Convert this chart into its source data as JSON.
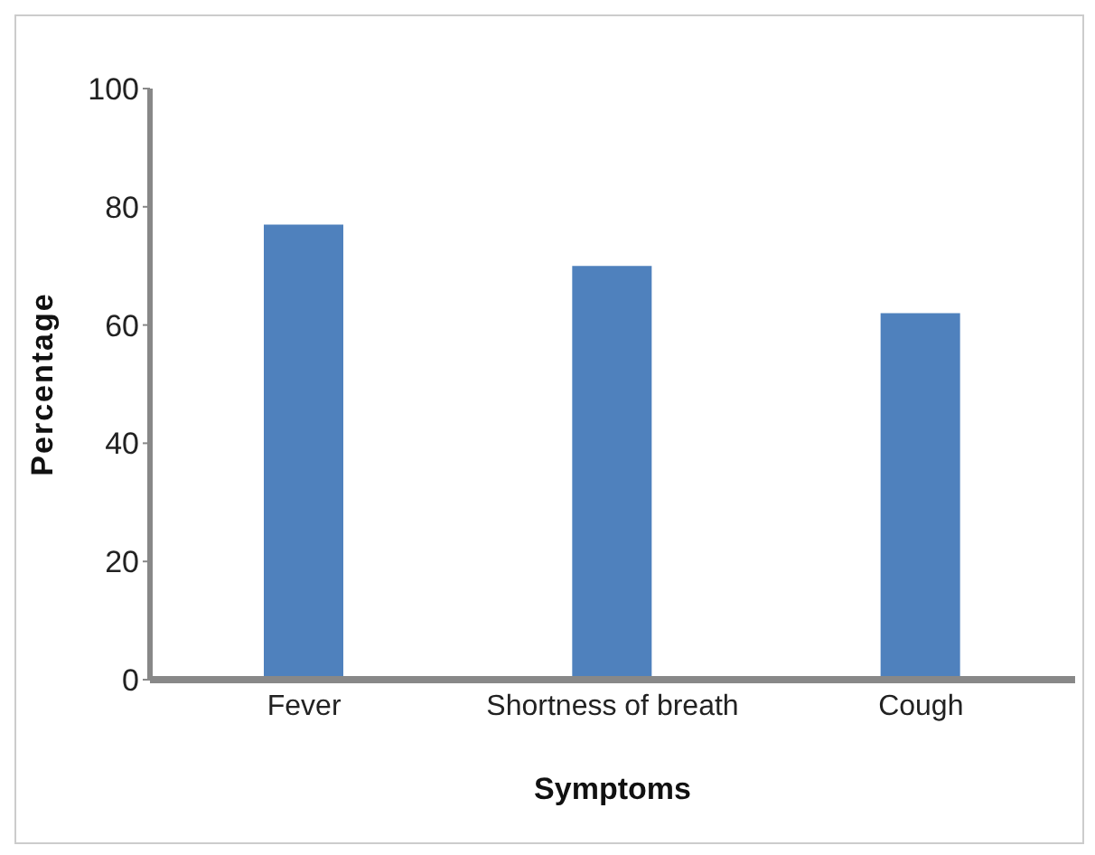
{
  "chart_data": {
    "type": "bar",
    "xlabel": "Symptoms",
    "ylabel": "Percentage",
    "categories": [
      "Fever",
      "Shortness of breath",
      "Cough"
    ],
    "values": [
      77,
      70,
      62
    ],
    "color": "#4f81bd",
    "ylim": [
      0,
      100
    ],
    "yticks": [
      0,
      20,
      40,
      60,
      80,
      100
    ],
    "grid": false,
    "legend": false
  }
}
